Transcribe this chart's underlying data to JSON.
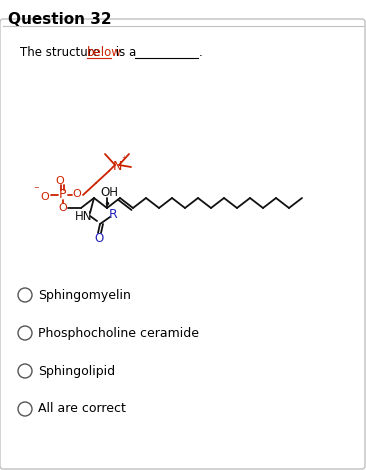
{
  "title": "Question 32",
  "question_text": "The structure below is a",
  "options": [
    "Sphingomyelin",
    "Phosphocholine ceramide",
    "Sphingolipid",
    "All are correct"
  ],
  "bg_color": "#ffffff",
  "border_color": "#c0c0c0",
  "title_color": "#000000",
  "question_color": "#000000",
  "option_color": "#000000",
  "red_color": "#cc2200",
  "blue_color": "#2222bb",
  "black_color": "#111111",
  "underline_color": "#cc2200"
}
